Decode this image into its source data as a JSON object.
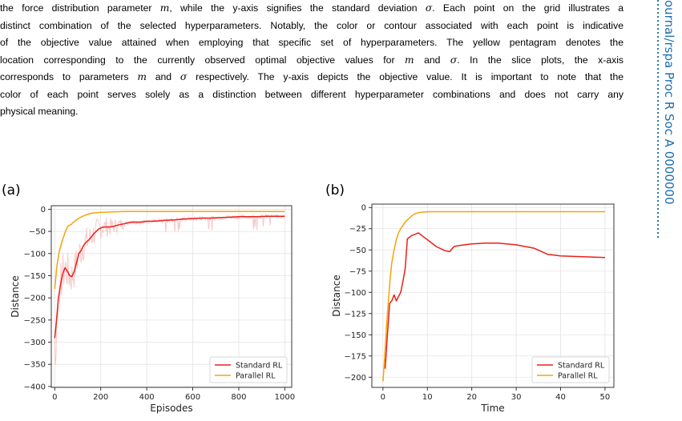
{
  "paragraph": {
    "lines": [
      [
        "the force distribution parameter ",
        {
          "m": "m"
        },
        ", while the y-axis signifies the standard deviation ",
        {
          "m": "σ"
        },
        ". Each point on the grid illustrates a"
      ],
      [
        "distinct combination of the selected hyperparameters. Notably, the color or contour associated with each point is indicative"
      ],
      [
        "of the objective value attained when employing that specific set of hyperparameters. The yellow pentagram denotes the"
      ],
      [
        "location corresponding to the currently observed optimal objective values for ",
        {
          "m": "m"
        },
        " and ",
        {
          "m": "σ"
        },
        ". In the slice plots, the x-axis"
      ],
      [
        "corresponds to parameters ",
        {
          "m": "m"
        },
        " and ",
        {
          "m": "σ"
        },
        " respectively. The y-axis depicts the objective value. It is important to note that the"
      ],
      [
        "color of each point serves solely as a distinction between different hyperparameter combinations and does not carry any"
      ],
      [
        "physical meaning."
      ]
    ]
  },
  "sidebar_text": "ournal/rspa  Proc R Soc A 0000000",
  "panels": [
    {
      "label": "(a)"
    },
    {
      "label": "(b)"
    }
  ],
  "colors": {
    "standard": "#e8201a",
    "parallel": "#f5a30a",
    "noise": "#f7b6b6",
    "grid": "#e3e3e3"
  },
  "chart_data": [
    {
      "type": "line",
      "xlabel": "Episodes",
      "ylabel": "Distance",
      "xlim": [
        -15,
        1030
      ],
      "ylim": [
        -402,
        8
      ],
      "xticks": [
        0,
        200,
        400,
        600,
        800,
        1000
      ],
      "yticks": [
        0,
        -50,
        -100,
        -150,
        -200,
        -250,
        -300,
        -350,
        -400
      ],
      "grid": true,
      "legend": "bottom-right",
      "series": [
        {
          "name": "Standard RL",
          "color": "standard",
          "x": [
            0,
            8,
            15,
            25,
            35,
            45,
            55,
            65,
            75,
            85,
            95,
            105,
            115,
            125,
            135,
            150,
            170,
            190,
            210,
            240,
            260,
            280,
            300,
            330,
            360,
            380,
            400,
            440,
            480,
            520,
            560,
            600,
            640,
            680,
            720,
            760,
            800,
            840,
            880,
            920,
            960,
            1000
          ],
          "y": [
            -291,
            -250,
            -205,
            -170,
            -145,
            -132,
            -140,
            -150,
            -152,
            -140,
            -120,
            -100,
            -93,
            -82,
            -75,
            -68,
            -55,
            -45,
            -40,
            -40,
            -38,
            -35,
            -33,
            -29,
            -29,
            -29,
            -27,
            -27,
            -25,
            -24,
            -22,
            -21,
            -20,
            -20,
            -19,
            -18,
            -17,
            -17,
            -17,
            -16,
            -16,
            -16
          ]
        },
        {
          "name": "Parallel RL",
          "color": "parallel",
          "x": [
            0,
            10,
            20,
            30,
            40,
            50,
            60,
            70,
            80,
            100,
            120,
            140,
            160,
            200,
            250,
            300,
            400,
            500,
            600,
            700,
            800,
            900,
            1000
          ],
          "y": [
            -180,
            -125,
            -95,
            -75,
            -60,
            -45,
            -37,
            -35,
            -30,
            -22,
            -16,
            -12,
            -9,
            -7,
            -6,
            -5,
            -5,
            -5,
            -5,
            -5,
            -5,
            -5,
            -5
          ]
        }
      ]
    },
    {
      "type": "line",
      "xlabel": "Time",
      "ylabel": "Distance",
      "xlim": [
        -2.5,
        52
      ],
      "ylim": [
        -212,
        4
      ],
      "xticks": [
        0,
        10,
        20,
        30,
        40,
        50
      ],
      "yticks": [
        0,
        -25,
        -50,
        -75,
        -100,
        -125,
        -150,
        -175,
        -200
      ],
      "grid": true,
      "legend": "bottom-right",
      "series": [
        {
          "name": "Standard RL",
          "color": "standard",
          "x": [
            0.5,
            1,
            1.5,
            2,
            2.5,
            3,
            3.5,
            4,
            4.5,
            5,
            5.5,
            6,
            6.5,
            7,
            7.5,
            8,
            9,
            10,
            12,
            14,
            15,
            16,
            17,
            20,
            23,
            26,
            30,
            34,
            37,
            40,
            45,
            50
          ],
          "y": [
            -190,
            -150,
            -113,
            -110,
            -103,
            -110,
            -105,
            -100,
            -87,
            -72,
            -37,
            -35,
            -33,
            -32,
            -31,
            -30,
            -34,
            -38,
            -46,
            -51,
            -52,
            -46,
            -45,
            -43,
            -42,
            -42,
            -44,
            -48,
            -55,
            -57,
            -58,
            -59
          ]
        },
        {
          "name": "Parallel RL",
          "color": "parallel",
          "x": [
            0,
            0.4,
            0.8,
            1.2,
            1.6,
            2,
            2.5,
            3,
            3.5,
            4,
            5,
            6,
            7,
            8,
            10,
            15,
            20,
            30,
            40,
            50
          ],
          "y": [
            -205,
            -175,
            -140,
            -112,
            -85,
            -65,
            -50,
            -38,
            -30,
            -25,
            -17,
            -12,
            -8,
            -6,
            -5,
            -5,
            -5,
            -5,
            -5,
            -5
          ]
        }
      ]
    }
  ]
}
